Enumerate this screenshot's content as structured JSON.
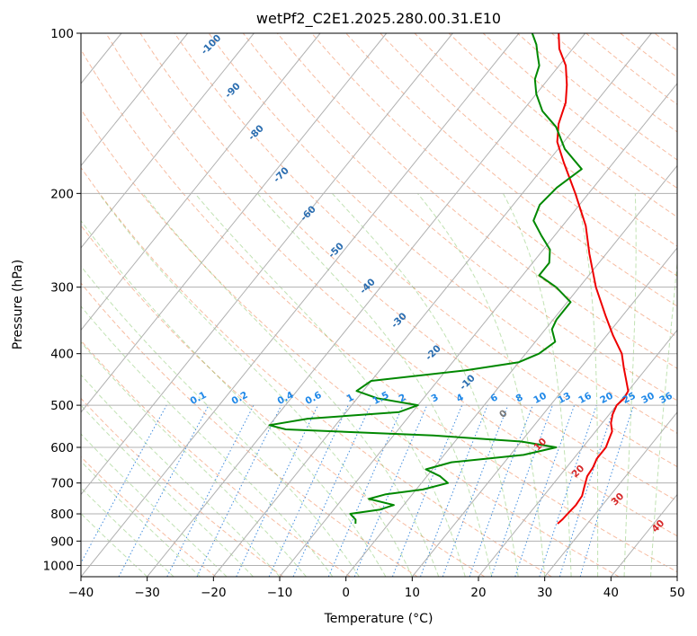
{
  "chart_data": {
    "type": "line",
    "title": "wetPf2_C2E1.2025.280.00.31.E10",
    "xlabel": "Temperature (°C)",
    "ylabel": "Pressure (hPa)",
    "xlim": [
      -40,
      50
    ],
    "ylim": [
      1050,
      100
    ],
    "y_scale": "log",
    "x_ticks": [
      -40,
      -30,
      -20,
      -10,
      0,
      10,
      20,
      30,
      40,
      50
    ],
    "x_tick_labels": [
      "−40",
      "−30",
      "−20",
      "−10",
      "0",
      "10",
      "20",
      "30",
      "40",
      "50"
    ],
    "y_ticks": [
      100,
      200,
      300,
      400,
      500,
      600,
      700,
      800,
      900,
      1000
    ],
    "grid": true,
    "skew": true,
    "series": [
      {
        "color": "#ee0000",
        "points": [
          [
            835,
            25.5
          ],
          [
            820,
            25.7
          ],
          [
            800,
            25.8
          ],
          [
            770,
            26.0
          ],
          [
            740,
            25.8
          ],
          [
            710,
            25.0
          ],
          [
            680,
            24.2
          ],
          [
            655,
            24.0
          ],
          [
            630,
            23.5
          ],
          [
            600,
            23.5
          ],
          [
            580,
            23.0
          ],
          [
            560,
            22.5
          ],
          [
            540,
            21.3
          ],
          [
            520,
            20.5
          ],
          [
            500,
            20.0
          ],
          [
            485,
            20.3
          ],
          [
            470,
            20.0
          ],
          [
            450,
            18.5
          ],
          [
            425,
            16.5
          ],
          [
            400,
            14.5
          ],
          [
            370,
            11.0
          ],
          [
            340,
            7.5
          ],
          [
            300,
            2.5
          ],
          [
            260,
            -2.5
          ],
          [
            230,
            -6.5
          ],
          [
            200,
            -12.0
          ],
          [
            175,
            -17.5
          ],
          [
            160,
            -21.0
          ],
          [
            148,
            -23.0
          ],
          [
            135,
            -24.5
          ],
          [
            125,
            -26.5
          ],
          [
            115,
            -29.0
          ],
          [
            107,
            -32.0
          ],
          [
            100,
            -34.0
          ]
        ]
      },
      {
        "color": "#008800",
        "points": [
          [
            835,
            -5.0
          ],
          [
            820,
            -5.5
          ],
          [
            800,
            -7.0
          ],
          [
            785,
            -3.0
          ],
          [
            770,
            -1.5
          ],
          [
            750,
            -6.0
          ],
          [
            735,
            -4.0
          ],
          [
            720,
            1.0
          ],
          [
            700,
            4.0
          ],
          [
            680,
            2.0
          ],
          [
            660,
            -1.0
          ],
          [
            640,
            2.0
          ],
          [
            620,
            12.0
          ],
          [
            600,
            16.0
          ],
          [
            585,
            10.0
          ],
          [
            570,
            -4.0
          ],
          [
            555,
            -27.0
          ],
          [
            545,
            -30.0
          ],
          [
            530,
            -25.0
          ],
          [
            515,
            -12.0
          ],
          [
            500,
            -10.0
          ],
          [
            485,
            -17.0
          ],
          [
            470,
            -21.0
          ],
          [
            450,
            -20.0
          ],
          [
            430,
            -7.0
          ],
          [
            415,
            0.0
          ],
          [
            400,
            2.0
          ],
          [
            380,
            3.0
          ],
          [
            360,
            1.0
          ],
          [
            345,
            0.5
          ],
          [
            320,
            0.5
          ],
          [
            300,
            -3.5
          ],
          [
            285,
            -7.5
          ],
          [
            270,
            -7.5
          ],
          [
            255,
            -9.0
          ],
          [
            240,
            -12.0
          ],
          [
            225,
            -15.0
          ],
          [
            210,
            -16.0
          ],
          [
            195,
            -15.5
          ],
          [
            180,
            -14.0
          ],
          [
            165,
            -19.0
          ],
          [
            150,
            -23.0
          ],
          [
            140,
            -27.0
          ],
          [
            130,
            -30.0
          ],
          [
            122,
            -32.0
          ],
          [
            115,
            -33.0
          ],
          [
            110,
            -34.5
          ],
          [
            105,
            -36.0
          ],
          [
            100,
            -38.0
          ]
        ]
      }
    ],
    "dry_adiabat_labels": [
      "-100",
      "-90",
      "-80",
      "-70",
      "-60",
      "-50",
      "-40",
      "-30",
      "-20",
      "-10",
      "0",
      "10",
      "20",
      "30",
      "40"
    ],
    "mixing_ratio_labels": [
      "0.1",
      "0.2",
      "0.4",
      "0.6",
      "1",
      "1.5",
      "2",
      "3",
      "4",
      "6",
      "8",
      "10",
      "13",
      "16",
      "20",
      "25",
      "30",
      "36"
    ]
  }
}
